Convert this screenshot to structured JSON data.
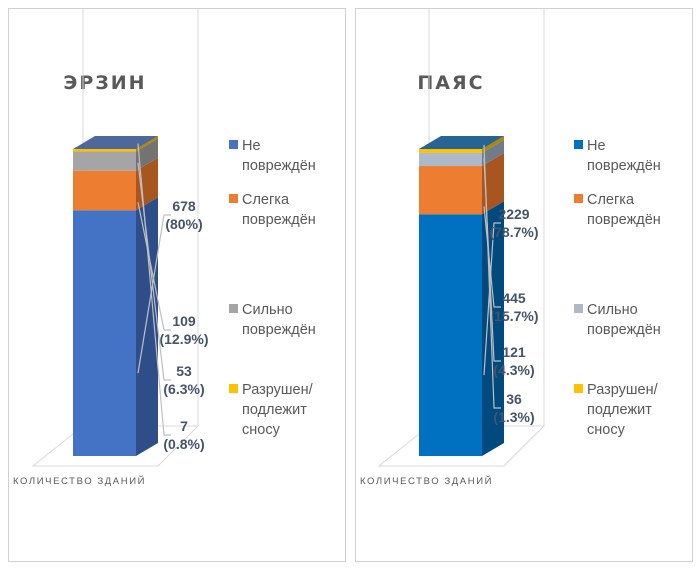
{
  "chart_data": [
    {
      "type": "bar",
      "stacking": "100% stacked, 3D",
      "title": "ЭРЗИН",
      "categories": [
        "КОЛИЧЕСТВО ЗДАНИЙ"
      ],
      "series": [
        {
          "name": "Не повреждён",
          "legend_lines": [
            "Не",
            "повреждён"
          ],
          "values": [
            678
          ],
          "percent": "80%",
          "label": [
            "678",
            "(80%)"
          ],
          "color": "#4472C4",
          "side_color": "#2E4E8A"
        },
        {
          "name": "Слегка повреждён",
          "legend_lines": [
            "Слегка",
            "повреждён"
          ],
          "values": [
            109
          ],
          "percent": "12.9%",
          "label": [
            "109",
            "(12.9%)"
          ],
          "color": "#ED7D31",
          "side_color": "#A85620"
        },
        {
          "name": "Сильно повреждён",
          "legend_lines": [
            "Сильно",
            "повреждён"
          ],
          "values": [
            53
          ],
          "percent": "6.3%",
          "label": [
            "53",
            "(6.3%)"
          ],
          "color": "#A5A5A5",
          "side_color": "#737373"
        },
        {
          "name": "Разрушен/ подлежит сносу",
          "legend_lines": [
            "Разрушен/",
            "подлежит",
            "сносу"
          ],
          "values": [
            7
          ],
          "percent": "0.8%",
          "label": [
            "7",
            "(0.8%)"
          ],
          "color": "#FFC000",
          "side_color": "#B38600"
        }
      ],
      "legend_position": "right",
      "grid": false
    },
    {
      "type": "bar",
      "stacking": "100% stacked, 3D",
      "title": "ПАЯС",
      "categories": [
        "КОЛИЧЕСТВО ЗДАНИЙ"
      ],
      "series": [
        {
          "name": "Не повреждён",
          "legend_lines": [
            "Не",
            "повреждён"
          ],
          "values": [
            2229
          ],
          "percent": "78.7%",
          "label": [
            "2229",
            "(78.7%)"
          ],
          "color": "#0070C0",
          "side_color": "#004A80"
        },
        {
          "name": "Слегка повреждён",
          "legend_lines": [
            "Слегка",
            "повреждён"
          ],
          "values": [
            445
          ],
          "percent": "15.7%",
          "label": [
            "445",
            "(15.7%)"
          ],
          "color": "#ED7D31",
          "side_color": "#A85620"
        },
        {
          "name": "Сильно повреждён",
          "legend_lines": [
            "Сильно",
            "повреждён"
          ],
          "values": [
            121
          ],
          "percent": "4.3%",
          "label": [
            "121",
            "(4.3%)"
          ],
          "color": "#ADB9CA",
          "side_color": "#6F7C8E"
        },
        {
          "name": "Разрушен/ подлежит сносу",
          "legend_lines": [
            "Разрушен/",
            "подлежит",
            "сносу"
          ],
          "values": [
            36
          ],
          "percent": "1.3%",
          "label": [
            "36",
            "(1.3%)"
          ],
          "color": "#FFC000",
          "side_color": "#B38600"
        }
      ],
      "legend_position": "right",
      "grid": false
    }
  ]
}
